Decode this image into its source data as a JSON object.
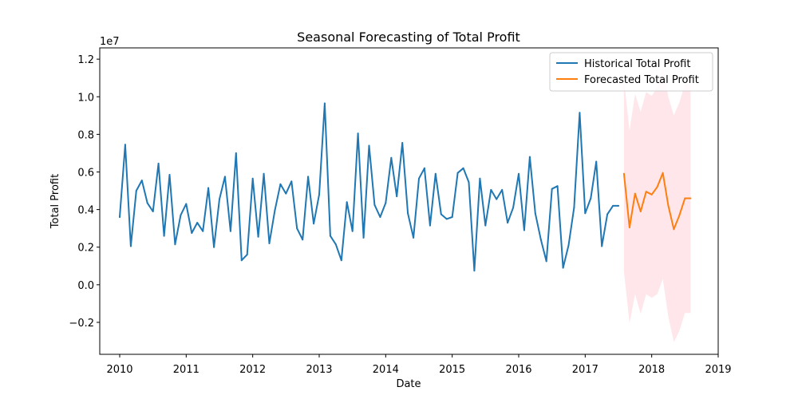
{
  "chart_data": {
    "type": "line",
    "title": "Seasonal Forecasting of Total Profit",
    "xlabel": "Date",
    "ylabel": "Total Profit",
    "y_offset_label": "1e7",
    "y_scale": 10000000,
    "xlim": [
      2009.7,
      2019.0
    ],
    "ylim": [
      -3700000,
      12600000
    ],
    "x_ticks": [
      2010,
      2011,
      2012,
      2013,
      2014,
      2015,
      2016,
      2017,
      2018,
      2019
    ],
    "x_tick_labels": [
      "2010",
      "2011",
      "2012",
      "2013",
      "2014",
      "2015",
      "2016",
      "2017",
      "2018",
      "2019"
    ],
    "y_ticks": [
      -2000000,
      0,
      2000000,
      4000000,
      6000000,
      8000000,
      10000000,
      12000000
    ],
    "y_tick_labels": [
      "−0.2",
      "0.0",
      "0.2",
      "0.4",
      "0.6",
      "0.8",
      "1.0",
      "1.2"
    ],
    "grid": false,
    "legend_position": "top-right",
    "colors": {
      "historical": "#1f77b4",
      "forecast": "#ff7f0e",
      "confidence": "#ffc0cb"
    },
    "series": [
      {
        "name": "Historical Total Profit",
        "color": "#1f77b4",
        "x": [
          "2010-01",
          "2010-02",
          "2010-03",
          "2010-04",
          "2010-05",
          "2010-06",
          "2010-07",
          "2010-08",
          "2010-09",
          "2010-10",
          "2010-11",
          "2010-12",
          "2011-01",
          "2011-02",
          "2011-03",
          "2011-04",
          "2011-05",
          "2011-06",
          "2011-07",
          "2011-08",
          "2011-09",
          "2011-10",
          "2011-11",
          "2011-12",
          "2012-01",
          "2012-02",
          "2012-03",
          "2012-04",
          "2012-05",
          "2012-06",
          "2012-07",
          "2012-08",
          "2012-09",
          "2012-10",
          "2012-11",
          "2012-12",
          "2013-01",
          "2013-02",
          "2013-03",
          "2013-04",
          "2013-05",
          "2013-06",
          "2013-07",
          "2013-08",
          "2013-09",
          "2013-10",
          "2013-11",
          "2013-12",
          "2014-01",
          "2014-02",
          "2014-03",
          "2014-04",
          "2014-05",
          "2014-06",
          "2014-07",
          "2014-08",
          "2014-09",
          "2014-10",
          "2014-11",
          "2014-12",
          "2015-01",
          "2015-02",
          "2015-03",
          "2015-04",
          "2015-05",
          "2015-06",
          "2015-07",
          "2015-08",
          "2015-09",
          "2015-10",
          "2015-11",
          "2015-12",
          "2016-01",
          "2016-02",
          "2016-03",
          "2016-04",
          "2016-05",
          "2016-06",
          "2016-07",
          "2016-08",
          "2016-09",
          "2016-10",
          "2016-11",
          "2016-12",
          "2017-01",
          "2017-02",
          "2017-03",
          "2017-04",
          "2017-05",
          "2017-06",
          "2017-07"
        ],
        "values": [
          3600000,
          7450000,
          2050000,
          5000000,
          5550000,
          4350000,
          3900000,
          6450000,
          2600000,
          5850000,
          2150000,
          3700000,
          4300000,
          2750000,
          3300000,
          2850000,
          5150000,
          2000000,
          4550000,
          5750000,
          2850000,
          7000000,
          1300000,
          1600000,
          5650000,
          2550000,
          5900000,
          2200000,
          3950000,
          5350000,
          4850000,
          5500000,
          3000000,
          2400000,
          5750000,
          3250000,
          4800000,
          9650000,
          2600000,
          2150000,
          1300000,
          4400000,
          2850000,
          8050000,
          2500000,
          7400000,
          4250000,
          3600000,
          4350000,
          6750000,
          4700000,
          7550000,
          3800000,
          2500000,
          5650000,
          6200000,
          3150000,
          5900000,
          3750000,
          3500000,
          3600000,
          5950000,
          6200000,
          5450000,
          750000,
          5650000,
          3150000,
          5050000,
          4550000,
          5050000,
          3300000,
          4100000,
          5900000,
          2900000,
          6800000,
          3800000,
          2400000,
          1250000,
          5100000,
          5250000,
          900000,
          2100000,
          4100000,
          9150000,
          3800000,
          4600000,
          6550000,
          2050000,
          3750000,
          4200000,
          4200000
        ]
      },
      {
        "name": "Forecasted Total Profit",
        "color": "#ff7f0e",
        "x": [
          "2017-08",
          "2017-09",
          "2017-10",
          "2017-11",
          "2017-12",
          "2018-01",
          "2018-02",
          "2018-03",
          "2018-04",
          "2018-05",
          "2018-06",
          "2018-07",
          "2018-08"
        ],
        "values": [
          5900000,
          3050000,
          4850000,
          3900000,
          4950000,
          4800000,
          5200000,
          5950000,
          4200000,
          2950000,
          3700000,
          4600000,
          4600000
        ],
        "lower": [
          700000,
          -2050000,
          -500000,
          -1550000,
          -500000,
          -700000,
          -500000,
          300000,
          -1700000,
          -3050000,
          -2450000,
          -1500000,
          -1500000
        ],
        "upper": [
          10900000,
          8200000,
          10150000,
          9200000,
          10250000,
          10050000,
          10500000,
          11600000,
          10000000,
          9000000,
          9700000,
          10650000,
          10650000
        ]
      }
    ]
  }
}
